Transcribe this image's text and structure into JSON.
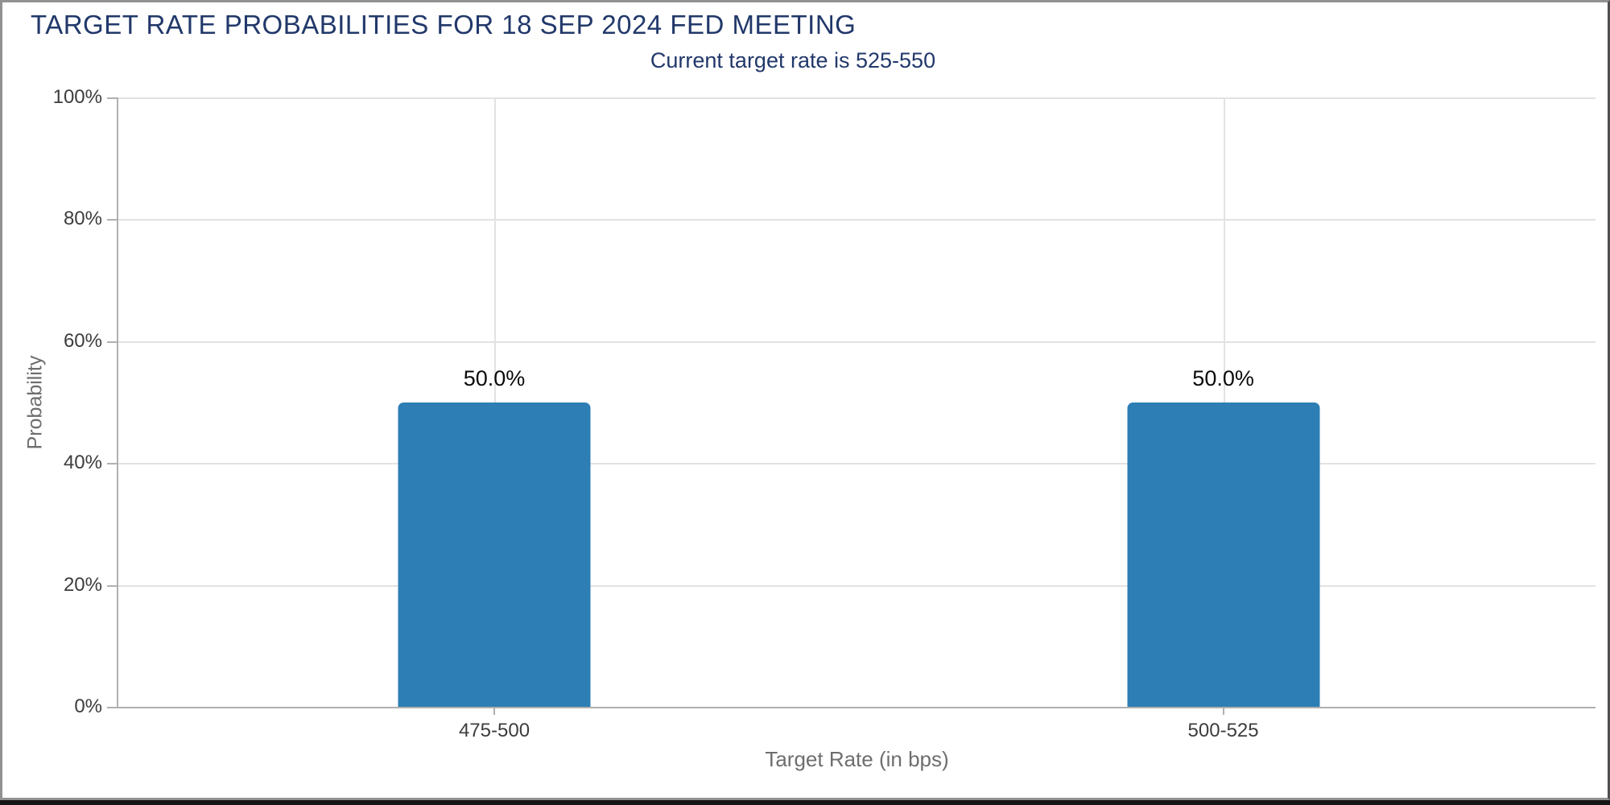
{
  "header": {
    "title": "TARGET RATE PROBABILITIES FOR 18 SEP 2024 FED MEETING",
    "subtitle": "Current target rate is 525-550"
  },
  "chart_data": {
    "type": "bar",
    "title": "TARGET RATE PROBABILITIES FOR 18 SEP 2024 FED MEETING",
    "subtitle": "Current target rate is 525-550",
    "categories": [
      "475-500",
      "500-525"
    ],
    "values": [
      50.0,
      50.0
    ],
    "bar_labels": [
      "50.0%",
      "50.0%"
    ],
    "xlabel": "Target Rate (in bps)",
    "ylabel": "Probability",
    "ylim": [
      0,
      100
    ],
    "yticks": [
      "0%",
      "20%",
      "40%",
      "60%",
      "80%",
      "100%"
    ],
    "grid": "horizontal lines every 20%, vertical line at each bar center",
    "legend": "none"
  },
  "colors": {
    "navy": "#21386A",
    "bar-blue": "#2C7EB4",
    "grid-gray": "#E2E2E2",
    "axis-gray": "#B0B0B0",
    "tick-dark": "#3D3D3D",
    "label-gray": "#6E6E6E",
    "frame-gray": "#919191",
    "frame-dark": "#4F4F4F",
    "frame-black": "#151515"
  }
}
